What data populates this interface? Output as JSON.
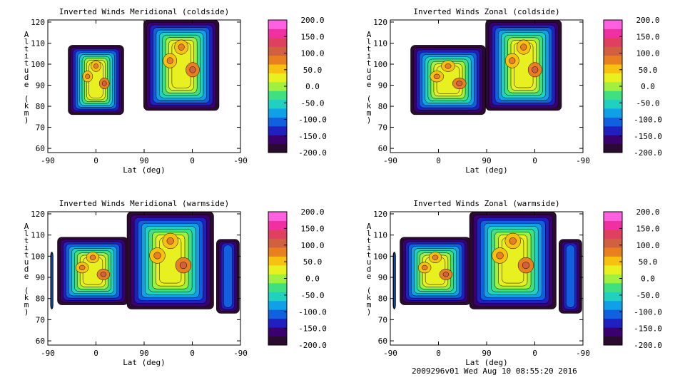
{
  "footer": "2009296v01 Wed Aug 10 08:55:20 2016",
  "chart_data": [
    {
      "type": "heatmap",
      "title": "Inverted Winds Meridional (coldside)",
      "xlabel": "Lat (deg)",
      "ylabel": "Altitude (km)",
      "xticks": [
        "-90",
        "0",
        "90",
        "0",
        "-90"
      ],
      "yticks": [
        "60",
        "70",
        "80",
        "90",
        "100",
        "110",
        "120"
      ],
      "ylim": [
        58,
        121
      ],
      "x_range_sections": [
        [
          -90,
          90
        ],
        [
          90,
          -90
        ]
      ],
      "colorbar": {
        "min": -200,
        "max": 200,
        "ticks": [
          "200.0",
          "150.0",
          "100.0",
          "50.0",
          "0.0",
          "-50.0",
          "-100.0",
          "-150.0",
          "-200.0"
        ]
      },
      "data_extent": [
        {
          "lat_start": -52,
          "lat_end": 52,
          "alt_bottom": 76,
          "alt_top": 109
        },
        {
          "lat_start": 91,
          "lat_end": -50,
          "alt_bottom": 78,
          "alt_top": 121
        }
      ]
    },
    {
      "type": "heatmap",
      "title": "Inverted Winds Zonal (coldside)",
      "xlabel": "Lat (deg)",
      "ylabel": "Altitude (km)",
      "xticks": [
        "-90",
        "0",
        "90",
        "0",
        "-90"
      ],
      "yticks": [
        "60",
        "70",
        "80",
        "90",
        "100",
        "110",
        "120"
      ],
      "ylim": [
        58,
        121
      ],
      "x_range_sections": [
        [
          -90,
          90
        ],
        [
          90,
          -90
        ]
      ],
      "colorbar": {
        "min": -200,
        "max": 200,
        "ticks": [
          "200.0",
          "150.0",
          "100.0",
          "50.0",
          "0.0",
          "-50.0",
          "-100.0",
          "-150.0",
          "-200.0"
        ]
      },
      "data_extent": [
        {
          "lat_start": -52,
          "lat_end": 88,
          "alt_bottom": 76,
          "alt_top": 109
        },
        {
          "lat_start": 92,
          "lat_end": -50,
          "alt_bottom": 78,
          "alt_top": 121
        }
      ]
    },
    {
      "type": "heatmap",
      "title": "Inverted Winds Meridional (warmside)",
      "xlabel": "Lat (deg)",
      "ylabel": "Altitude (km)",
      "xticks": [
        "-90",
        "0",
        "90",
        "0",
        "-90"
      ],
      "yticks": [
        "60",
        "70",
        "80",
        "90",
        "100",
        "110",
        "120"
      ],
      "ylim": [
        58,
        121
      ],
      "x_range_sections": [
        [
          -90,
          90
        ],
        [
          90,
          -90
        ]
      ],
      "colorbar": {
        "min": -200,
        "max": 200,
        "ticks": [
          "200.0",
          "150.0",
          "100.0",
          "50.0",
          "0.0",
          "-50.0",
          "-100.0",
          "-150.0",
          "-200.0"
        ]
      },
      "data_extent": [
        {
          "lat_start": -85,
          "lat_end": -80,
          "alt_bottom": 75,
          "alt_top": 102
        },
        {
          "lat_start": -72,
          "lat_end": 60,
          "alt_bottom": 77,
          "alt_top": 109
        },
        {
          "lat_start": 122,
          "lat_end": -40,
          "alt_bottom": 75,
          "alt_top": 121
        },
        {
          "lat_start": -45,
          "lat_end": -88,
          "alt_bottom": 73,
          "alt_top": 108
        }
      ]
    },
    {
      "type": "heatmap",
      "title": "Inverted Winds Zonal (warmside)",
      "xlabel": "Lat (deg)",
      "ylabel": "Altitude (km)",
      "xticks": [
        "-90",
        "0",
        "90",
        "0",
        "-90"
      ],
      "yticks": [
        "60",
        "70",
        "80",
        "90",
        "100",
        "110",
        "120"
      ],
      "ylim": [
        58,
        121
      ],
      "x_range_sections": [
        [
          -90,
          90
        ],
        [
          90,
          -90
        ]
      ],
      "colorbar": {
        "min": -200,
        "max": 200,
        "ticks": [
          "200.0",
          "150.0",
          "100.0",
          "50.0",
          "0.0",
          "-50.0",
          "-100.0",
          "-150.0",
          "-200.0"
        ]
      },
      "data_extent": [
        {
          "lat_start": -85,
          "lat_end": -80,
          "alt_bottom": 75,
          "alt_top": 102
        },
        {
          "lat_start": -72,
          "lat_end": 60,
          "alt_bottom": 77,
          "alt_top": 109
        },
        {
          "lat_start": 122,
          "lat_end": -40,
          "alt_bottom": 75,
          "alt_top": 121
        },
        {
          "lat_start": -45,
          "lat_end": -88,
          "alt_bottom": 73,
          "alt_top": 108
        }
      ]
    }
  ],
  "palette": [
    "#2a0a2e",
    "#3a0070",
    "#2020c0",
    "#1060e0",
    "#10a0e8",
    "#20d0c0",
    "#40e080",
    "#a0f040",
    "#e8f020",
    "#f8c010",
    "#e88020",
    "#d06040",
    "#e04060",
    "#f030a0",
    "#ff60e0"
  ]
}
